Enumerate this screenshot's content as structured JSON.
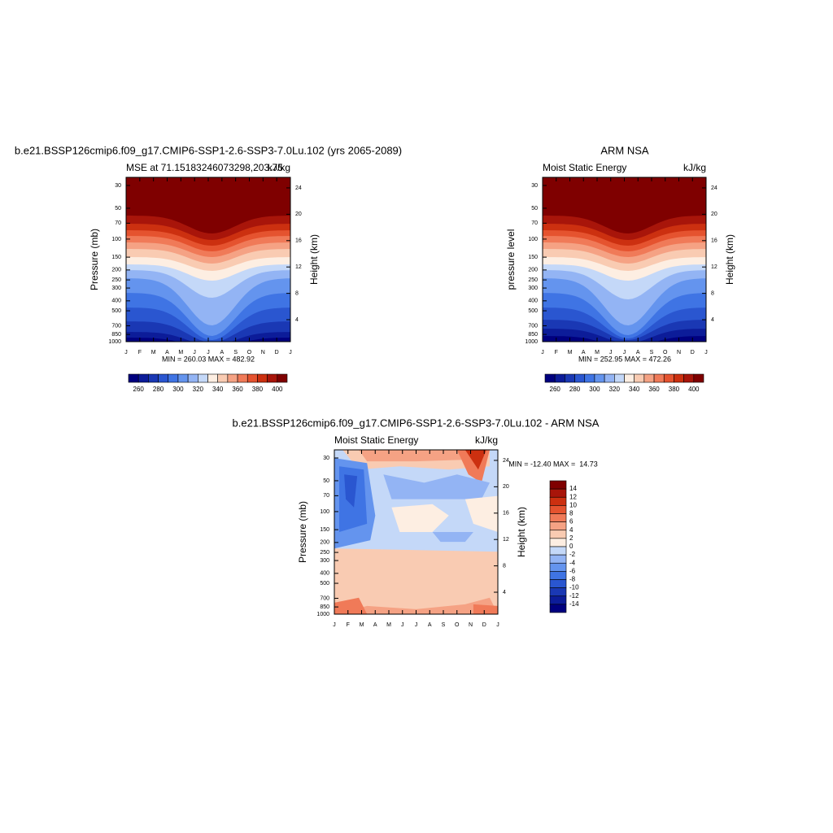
{
  "chart_data": [
    {
      "type": "contour",
      "title": "b.e21.BSSP126cmip6.f09_g17.CMIP6-SSP1-2.6-SSP3-7.0Lu.102 (yrs 2065-2089)",
      "left_string": "MSE at 71.15183246073298,203.75",
      "right_string": "kJ/kg",
      "ylabel": "Pressure (mb)",
      "y2label": "Height (km)",
      "stats": "MIN = 260.03 MAX = 482.92",
      "categories": [
        "J",
        "F",
        "M",
        "A",
        "M",
        "J",
        "J",
        "A",
        "S",
        "O",
        "N",
        "D",
        "J"
      ],
      "ylim": [
        1000,
        25
      ],
      "log_y": true,
      "yticks": [
        30,
        50,
        70,
        100,
        150,
        200,
        250,
        300,
        400,
        500,
        700,
        850,
        1000
      ],
      "y2lim": [
        0.67,
        25.6
      ],
      "y2ticks": [
        4,
        8,
        12,
        16,
        20,
        24
      ],
      "colorbar": {
        "orientation": "horizontal",
        "labels": [
          260,
          280,
          300,
          320,
          340,
          360,
          380,
          400
        ],
        "colors": [
          "#00007f",
          "#0c1c99",
          "#1a38b4",
          "#2a56d0",
          "#3f74e4",
          "#6494ee",
          "#93b4f4",
          "#c4d8f8",
          "#fdeee2",
          "#f9cbb2",
          "#f5a284",
          "#f07a58",
          "#e5532f",
          "#cc3010",
          "#a8150a",
          "#7f0000"
        ]
      }
    },
    {
      "type": "contour",
      "title": "ARM NSA",
      "left_string": "Moist Static Energy",
      "right_string": "kJ/kg",
      "ylabel": "pressure level",
      "y2label": "Height (km)",
      "stats": "MIN = 252.95 MAX = 472.26",
      "categories": [
        "J",
        "F",
        "M",
        "A",
        "M",
        "J",
        "J",
        "A",
        "S",
        "O",
        "N",
        "D",
        "J"
      ],
      "ylim": [
        1000,
        25
      ],
      "log_y": true,
      "yticks": [
        30,
        50,
        70,
        100,
        150,
        200,
        250,
        300,
        400,
        500,
        700,
        850,
        1000
      ],
      "y2lim": [
        0.67,
        25.6
      ],
      "y2ticks": [
        4,
        8,
        12,
        16,
        20,
        24
      ],
      "colorbar": {
        "orientation": "horizontal",
        "labels": [
          260,
          280,
          300,
          320,
          340,
          360,
          380,
          400
        ],
        "colors": [
          "#00007f",
          "#0c1c99",
          "#1a38b4",
          "#2a56d0",
          "#3f74e4",
          "#6494ee",
          "#93b4f4",
          "#c4d8f8",
          "#fdeee2",
          "#f9cbb2",
          "#f5a284",
          "#f07a58",
          "#e5532f",
          "#cc3010",
          "#a8150a",
          "#7f0000"
        ]
      }
    },
    {
      "type": "contour-diff",
      "title": "b.e21.BSSP126cmip6.f09_g17.CMIP6-SSP1-2.6-SSP3-7.0Lu.102 - ARM NSA",
      "left_string": "Moist Static Energy",
      "right_string": "kJ/kg",
      "ylabel": "Pressure (mb)",
      "y2label": "Height (km)",
      "stats": "MIN = -12.40 MAX =  14.73",
      "categories": [
        "J",
        "F",
        "M",
        "A",
        "M",
        "J",
        "J",
        "A",
        "S",
        "O",
        "N",
        "D",
        "J"
      ],
      "ylim": [
        1000,
        25
      ],
      "log_y": true,
      "yticks": [
        30,
        50,
        70,
        100,
        150,
        200,
        250,
        300,
        400,
        500,
        700,
        850,
        1000
      ],
      "y2lim": [
        0.67,
        25.6
      ],
      "y2ticks": [
        4,
        8,
        12,
        16,
        20,
        24
      ],
      "colorbar": {
        "orientation": "vertical",
        "labels": [
          14,
          12,
          10,
          8,
          6,
          4,
          2,
          0,
          -2,
          -4,
          -6,
          -8,
          -10,
          -12,
          -14
        ],
        "colors": [
          "#7f0000",
          "#a8150a",
          "#cc3010",
          "#e5532f",
          "#f07a58",
          "#f5a284",
          "#f9cbb2",
          "#fdeee2",
          "#c4d8f8",
          "#93b4f4",
          "#6494ee",
          "#3f74e4",
          "#2a56d0",
          "#1a38b4",
          "#0c1c99",
          "#00007f"
        ]
      }
    }
  ]
}
